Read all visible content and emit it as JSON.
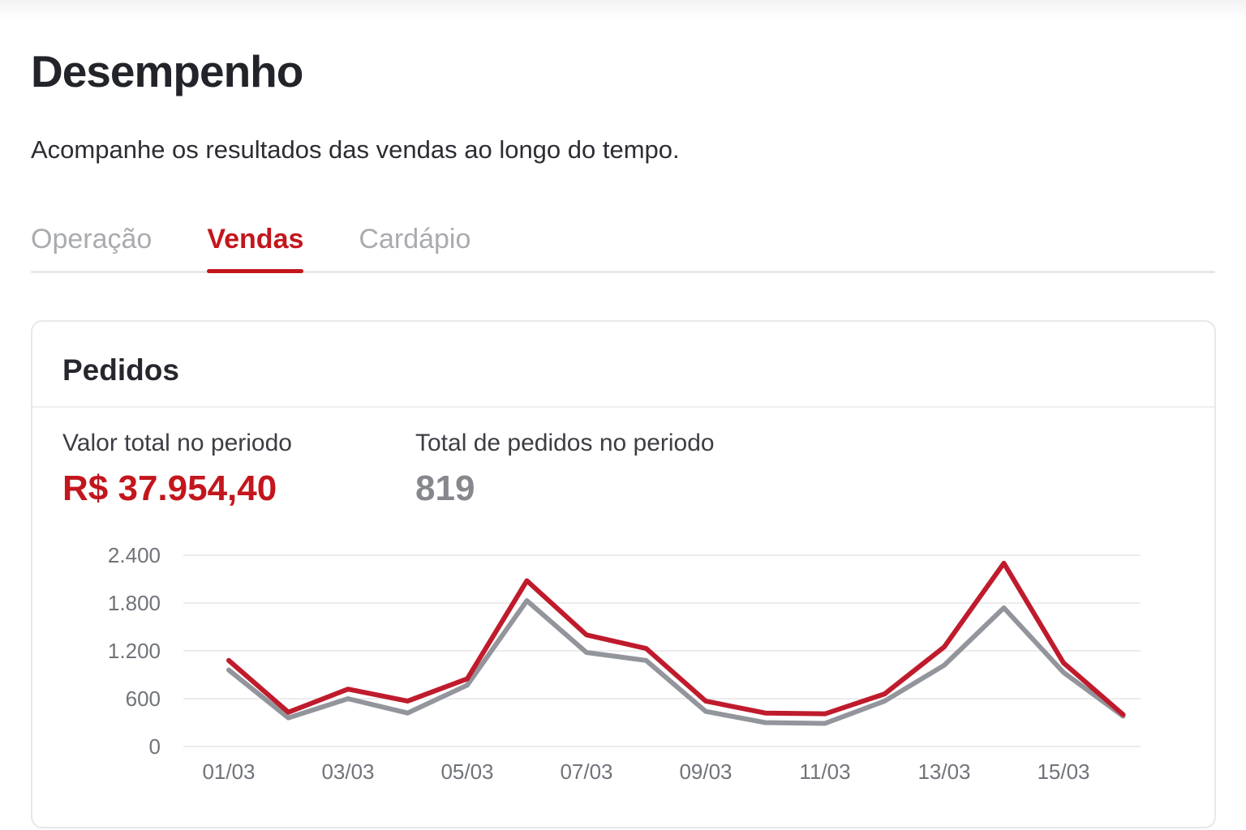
{
  "page": {
    "title": "Desempenho",
    "subtitle": "Acompanhe os resultados das vendas ao longo do tempo."
  },
  "tabs": [
    {
      "label": "Operação",
      "active": false
    },
    {
      "label": "Vendas",
      "active": true
    },
    {
      "label": "Cardápio",
      "active": false
    }
  ],
  "card": {
    "title": "Pedidos",
    "stats": [
      {
        "label": "Valor total no periodo",
        "value": "R$ 37.954,40"
      },
      {
        "label": "Total de pedidos no periodo",
        "value": "819"
      }
    ]
  },
  "chart_data": {
    "type": "line",
    "x": [
      "01/03",
      "02/03",
      "03/03",
      "04/03",
      "05/03",
      "06/03",
      "07/03",
      "08/03",
      "09/03",
      "10/03",
      "11/03",
      "12/03",
      "13/03",
      "14/03",
      "15/03",
      "16/03"
    ],
    "x_tick_every": 2,
    "series": [
      {
        "name": "red",
        "color": "#bf1b2c",
        "values": [
          1080,
          430,
          720,
          570,
          850,
          2080,
          1400,
          1230,
          570,
          420,
          410,
          660,
          1250,
          2300,
          1050,
          400
        ]
      },
      {
        "name": "gray",
        "color": "#92959b",
        "values": [
          960,
          360,
          600,
          420,
          770,
          1830,
          1180,
          1080,
          440,
          300,
          290,
          570,
          1020,
          1740,
          930,
          380
        ]
      }
    ],
    "title": "",
    "xlabel": "",
    "ylabel": "",
    "ylim": [
      0,
      2400
    ],
    "yticks": [
      0,
      600,
      1200,
      1800,
      2400
    ],
    "ytick_labels": [
      "0",
      "600",
      "1.200",
      "1.800",
      "2.400"
    ],
    "grid": true,
    "legend": false
  },
  "colors": {
    "accent_red": "#c3161d",
    "inactive_tab": "#a9abaf",
    "axis_text": "#707379",
    "gridline": "#ececee",
    "card_border": "#e6e8ea"
  }
}
